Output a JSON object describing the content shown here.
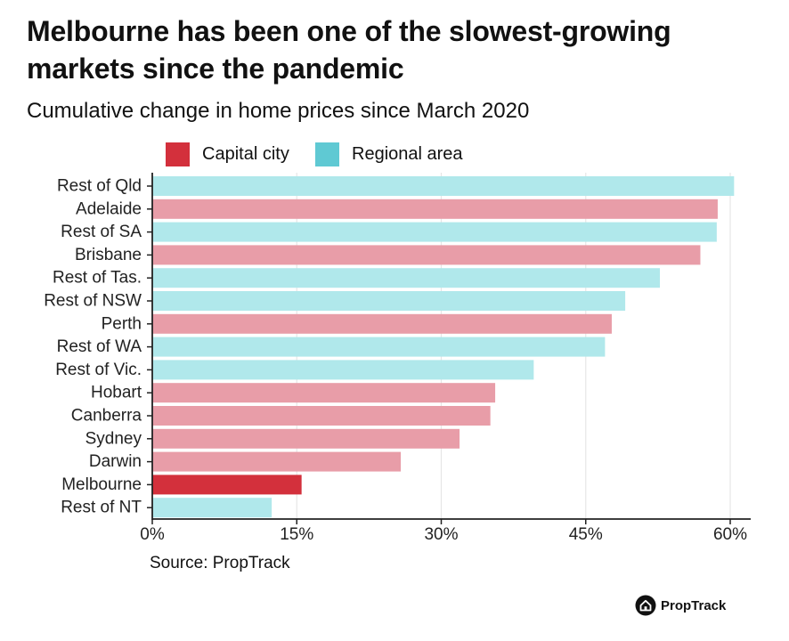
{
  "title": "Melbourne has been one of the slowest-growing markets since the pandemic",
  "subtitle": "Cumulative change in home prices since March 2020",
  "legend": [
    {
      "label": "Capital city",
      "color": "#d3303c"
    },
    {
      "label": "Regional area",
      "color": "#5fc9d3"
    }
  ],
  "source": "Source: PropTrack",
  "brand": {
    "name": "PropTrack",
    "icon": "house-icon"
  },
  "colors": {
    "capital_fill": "#e89da8",
    "regional_fill": "#b0e8eb",
    "highlight_fill": "#d3303c",
    "gridline": "#e6e6e6",
    "axis": "#222222"
  },
  "chart_data": {
    "type": "bar",
    "orientation": "horizontal",
    "title": "Cumulative change in home prices since March 2020",
    "xlabel": "",
    "ylabel": "",
    "xlim": [
      0,
      62
    ],
    "xticks": [
      0,
      15,
      30,
      45,
      60
    ],
    "xtick_labels": [
      "0%",
      "15%",
      "30%",
      "45%",
      "60%"
    ],
    "grid": "vertical",
    "highlight": "Melbourne",
    "categories": [
      "Rest of Qld",
      "Adelaide",
      "Rest of SA",
      "Brisbane",
      "Rest of Tas.",
      "Rest of NSW",
      "Perth",
      "Rest of WA",
      "Rest of Vic.",
      "Hobart",
      "Canberra",
      "Sydney",
      "Darwin",
      "Melbourne",
      "Rest of NT"
    ],
    "groups": [
      "Regional area",
      "Capital city",
      "Regional area",
      "Capital city",
      "Regional area",
      "Regional area",
      "Capital city",
      "Regional area",
      "Regional area",
      "Capital city",
      "Capital city",
      "Capital city",
      "Capital city",
      "Capital city",
      "Regional area"
    ],
    "values": [
      60.4,
      58.7,
      58.6,
      56.9,
      52.7,
      49.1,
      47.7,
      47.0,
      39.6,
      35.6,
      35.1,
      31.9,
      25.8,
      15.5,
      12.4
    ],
    "unit": "%"
  }
}
